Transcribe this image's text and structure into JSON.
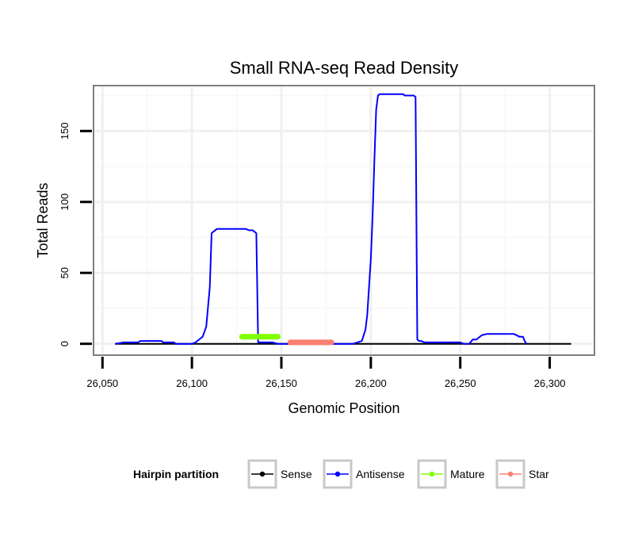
{
  "chart_data": {
    "type": "line",
    "title": "Small RNA-seq Read Density",
    "xlabel": "Genomic Position",
    "ylabel": "Total Reads",
    "xlim": [
      26045,
      26325
    ],
    "ylim": [
      -8,
      182
    ],
    "x_ticks": [
      26050,
      26100,
      26150,
      26200,
      26250,
      26300
    ],
    "x_tick_labels": [
      "26,050",
      "26,100",
      "26,150",
      "26,200",
      "26,250",
      "26,300"
    ],
    "y_ticks": [
      0,
      50,
      100,
      150
    ],
    "y_tick_labels": [
      "0",
      "50",
      "100",
      "150"
    ],
    "grid": true,
    "legend": {
      "title": "Hairpin partition",
      "position": "bottom",
      "entries": [
        "Sense",
        "Antisense",
        "Mature",
        "Star"
      ]
    },
    "series": [
      {
        "name": "Sense",
        "color": "#000000",
        "width": 2,
        "x": [
          26057,
          26070,
          26100,
          26150,
          26200,
          26250,
          26300,
          26312
        ],
        "y": [
          0,
          0,
          0,
          0,
          0,
          0,
          0,
          0
        ]
      },
      {
        "name": "Antisense",
        "color": "#0000ff",
        "width": 2,
        "x": [
          26057,
          26062,
          26070,
          26071,
          26083,
          26084,
          26090,
          26091,
          26100,
          26102,
          26106,
          26108,
          26110,
          26111,
          26112,
          26114,
          26130,
          26132,
          26134,
          26135,
          26136,
          26137,
          26145,
          26148,
          26150,
          26160,
          26170,
          26180,
          26190,
          26195,
          26197,
          26198,
          26199,
          26200,
          26201,
          26202,
          26203,
          26204,
          26205,
          26206,
          26208,
          26218,
          26219,
          26224,
          26225,
          26226,
          26227,
          26228,
          26230,
          26240,
          26250,
          26252,
          26253,
          26255,
          26257,
          26259,
          26260,
          26262,
          26265,
          26270,
          26280,
          26283,
          26285,
          26286,
          26287
        ],
        "y": [
          0,
          1,
          1,
          2,
          2,
          1,
          1,
          0,
          0,
          1,
          5,
          12,
          40,
          78,
          79,
          81,
          81,
          80,
          80,
          79,
          78,
          1,
          1,
          0,
          0,
          0,
          0,
          0,
          0,
          2,
          10,
          20,
          40,
          60,
          90,
          130,
          165,
          175,
          176,
          176,
          176,
          176,
          175,
          175,
          174,
          3,
          2,
          2,
          1,
          1,
          1,
          0,
          0,
          0,
          3,
          3,
          4,
          6,
          7,
          7,
          7,
          5,
          5,
          2,
          0
        ]
      },
      {
        "name": "Mature",
        "color": "#7fff00",
        "width": 7,
        "x": [
          26128,
          26148
        ],
        "y": [
          5,
          5
        ]
      },
      {
        "name": "Star",
        "color": "#fa8072",
        "width": 7,
        "x": [
          26155,
          26178
        ],
        "y": [
          1,
          1
        ]
      }
    ]
  }
}
